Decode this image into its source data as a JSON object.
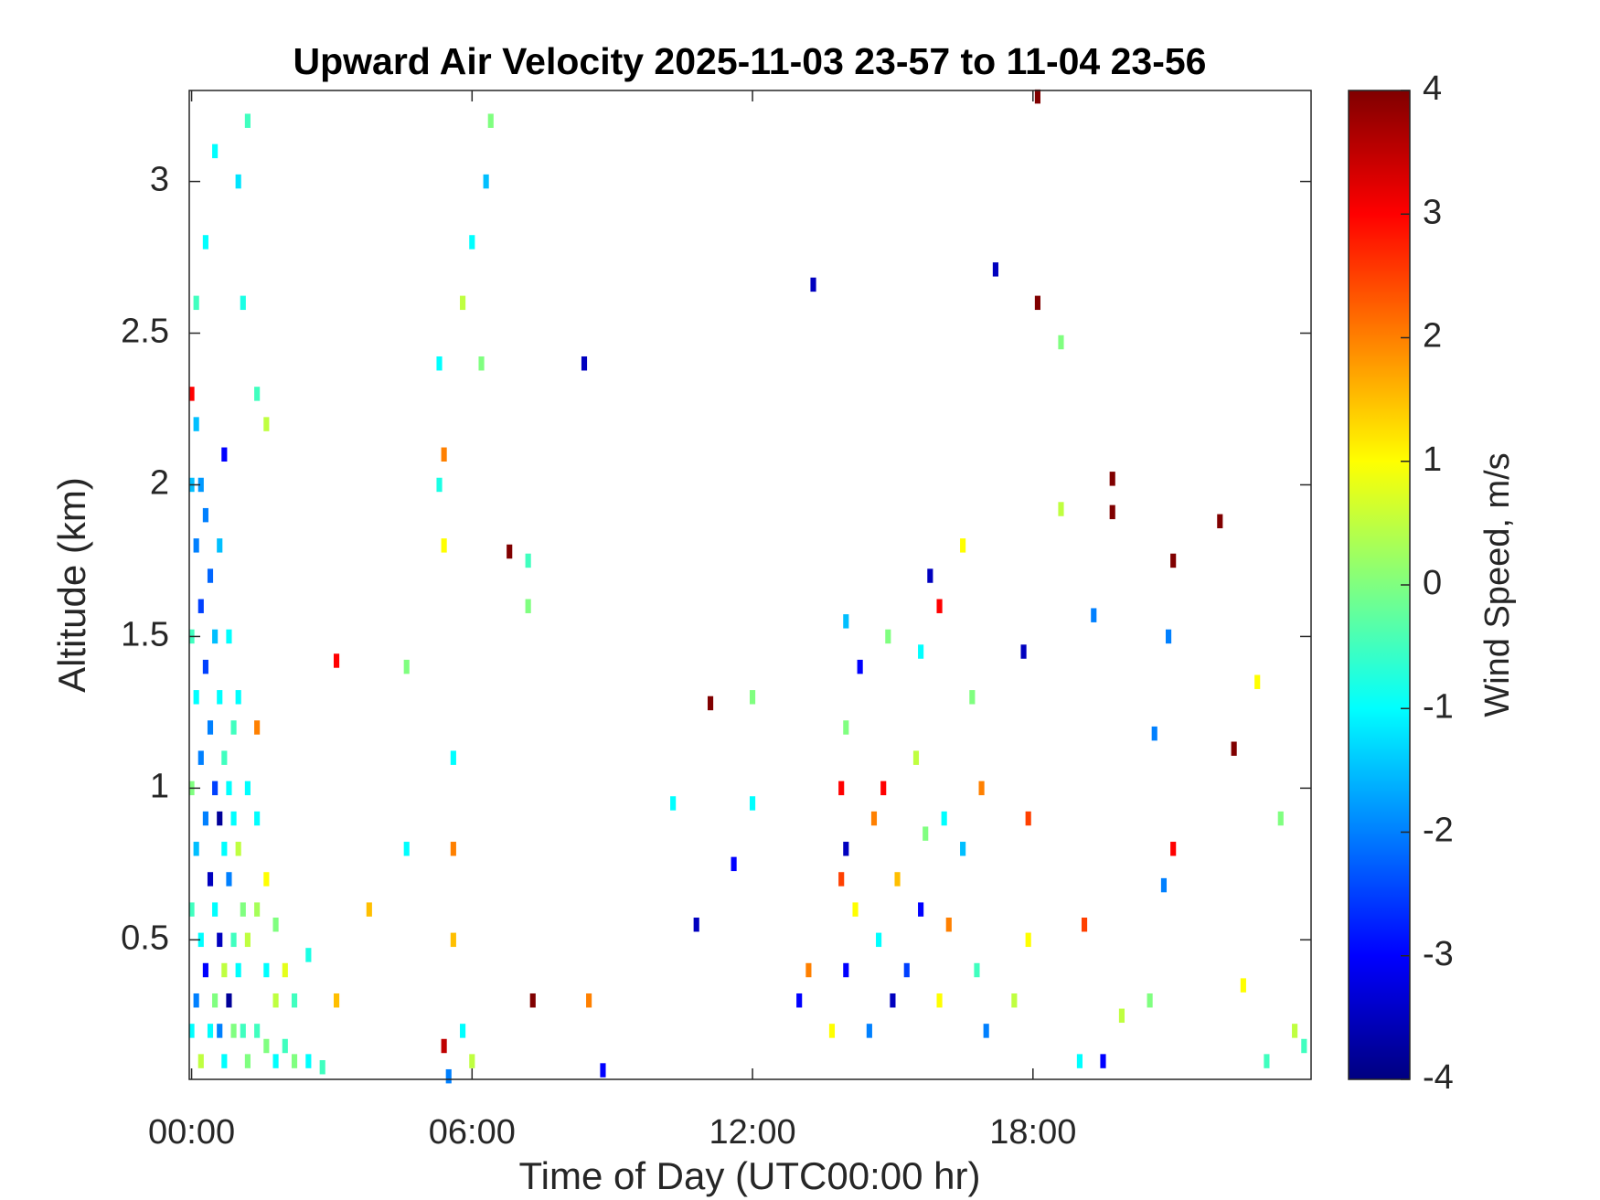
{
  "chart_data": {
    "type": "heatmap",
    "title": "Upward Air Velocity 2025-11-03 23-57 to 11-04 23-56",
    "x_label": "Time of Day (UTC00:00 hr)",
    "y_label": "Altitude (km)",
    "colorbar_label": "Wind Speed, m/s",
    "colormap": "jet",
    "clim": [
      -4,
      4
    ],
    "cticks": [
      -4,
      -3,
      -2,
      -1,
      0,
      1,
      2,
      3,
      4
    ],
    "xlim": [
      -0.05,
      23.95
    ],
    "xticks": [
      {
        "value": 0,
        "label": "00:00"
      },
      {
        "value": 6,
        "label": "06:00"
      },
      {
        "value": 12,
        "label": "12:00"
      },
      {
        "value": 18,
        "label": "18:00"
      }
    ],
    "ylim": [
      0.04,
      3.3
    ],
    "yticks": [
      0.5,
      1,
      1.5,
      2,
      2.5,
      3
    ],
    "x": [
      0.0,
      0.0,
      0.0,
      0.0,
      0.0,
      0.0,
      0.1,
      0.1,
      0.1,
      0.1,
      0.1,
      0.1,
      0.2,
      0.2,
      0.2,
      0.2,
      0.2,
      0.3,
      0.3,
      0.3,
      0.3,
      0.3,
      0.4,
      0.4,
      0.4,
      0.4,
      0.5,
      0.5,
      0.5,
      0.5,
      0.5,
      0.6,
      0.6,
      0.6,
      0.6,
      0.6,
      0.7,
      0.7,
      0.7,
      0.7,
      0.7,
      0.8,
      0.8,
      0.8,
      0.8,
      0.9,
      0.9,
      0.9,
      0.9,
      1.0,
      1.0,
      1.0,
      1.0,
      1.1,
      1.1,
      1.1,
      1.2,
      1.2,
      1.2,
      1.2,
      1.4,
      1.4,
      1.4,
      1.4,
      1.4,
      1.6,
      1.6,
      1.6,
      1.6,
      1.8,
      1.8,
      1.8,
      2.0,
      2.0,
      2.2,
      2.2,
      2.5,
      2.5,
      2.8,
      3.1,
      3.1,
      3.8,
      4.6,
      4.6,
      5.3,
      5.3,
      5.4,
      5.4,
      5.4,
      5.5,
      5.6,
      5.6,
      5.6,
      5.8,
      5.8,
      6.0,
      6.0,
      6.2,
      6.3,
      6.4,
      6.8,
      7.2,
      7.2,
      7.3,
      8.4,
      8.5,
      8.8,
      10.3,
      10.8,
      11.1,
      11.6,
      12.0,
      12.0,
      13.0,
      13.2,
      13.3,
      13.7,
      13.9,
      13.9,
      14.0,
      14.0,
      14.0,
      14.0,
      14.2,
      14.3,
      14.5,
      14.6,
      14.7,
      14.8,
      14.9,
      15.0,
      15.1,
      15.3,
      15.5,
      15.6,
      15.6,
      15.7,
      15.8,
      16.0,
      16.0,
      16.1,
      16.2,
      16.5,
      16.5,
      16.7,
      16.8,
      16.9,
      17.0,
      17.2,
      17.6,
      17.8,
      17.9,
      17.9,
      18.1,
      18.1,
      18.6,
      18.6,
      19.0,
      19.1,
      19.3,
      19.5,
      19.7,
      19.7,
      19.9,
      20.5,
      20.6,
      20.8,
      20.9,
      21.0,
      21.0,
      22.0,
      22.3,
      22.5,
      22.8,
      23.0,
      23.3,
      23.6,
      23.8
    ],
    "y": [
      0.2,
      0.6,
      1.0,
      1.5,
      2.0,
      2.3,
      0.3,
      0.8,
      1.3,
      1.8,
      2.2,
      2.6,
      0.1,
      0.5,
      1.1,
      1.6,
      2.0,
      0.4,
      0.9,
      1.4,
      1.9,
      2.8,
      0.2,
      0.7,
      1.2,
      1.7,
      0.3,
      0.6,
      1.0,
      1.5,
      3.1,
      0.2,
      0.5,
      0.9,
      1.3,
      1.8,
      0.1,
      0.4,
      0.8,
      1.1,
      2.1,
      0.3,
      0.7,
      1.0,
      1.5,
      0.2,
      0.5,
      0.9,
      1.2,
      0.4,
      0.8,
      1.3,
      3.0,
      0.2,
      0.6,
      2.6,
      0.1,
      0.5,
      1.0,
      3.2,
      0.2,
      0.6,
      0.9,
      1.2,
      2.3,
      0.15,
      0.4,
      0.7,
      2.2,
      0.1,
      0.3,
      0.55,
      0.15,
      0.4,
      0.1,
      0.3,
      0.1,
      0.45,
      0.08,
      0.3,
      1.42,
      0.6,
      1.4,
      0.8,
      2.4,
      2.0,
      2.1,
      1.8,
      0.15,
      0.05,
      0.8,
      0.5,
      1.1,
      2.6,
      0.2,
      2.8,
      0.1,
      2.4,
      3.0,
      3.2,
      1.78,
      1.6,
      1.75,
      0.3,
      2.4,
      0.3,
      0.07,
      0.95,
      0.55,
      1.28,
      0.75,
      0.95,
      1.3,
      0.3,
      0.4,
      2.66,
      0.2,
      1.0,
      0.7,
      1.55,
      1.2,
      0.4,
      0.8,
      0.6,
      1.4,
      0.2,
      0.9,
      0.5,
      1.0,
      1.5,
      0.3,
      0.7,
      0.4,
      1.1,
      0.6,
      1.45,
      0.85,
      1.7,
      1.6,
      0.3,
      0.9,
      0.55,
      1.8,
      0.8,
      1.3,
      0.4,
      1.0,
      0.2,
      2.71,
      0.3,
      1.45,
      0.9,
      0.5,
      2.6,
      3.28,
      2.47,
      1.92,
      0.1,
      0.55,
      1.57,
      0.1,
      2.02,
      1.91,
      0.25,
      0.3,
      1.18,
      0.68,
      1.5,
      1.75,
      0.8,
      1.88,
      1.13,
      0.35,
      1.35,
      0.1,
      0.9,
      0.2,
      0.15
    ],
    "values": [
      -1,
      -0.5,
      0,
      -0.5,
      -1.5,
      3,
      -2,
      -1.5,
      -1,
      -2,
      -1.5,
      -0.5,
      0.5,
      -1,
      -2,
      -2.5,
      -1.8,
      -3,
      -2,
      -2.5,
      -2,
      -1,
      -1,
      -3.5,
      -2,
      -2.2,
      0,
      -1,
      -2.5,
      -1.5,
      -1,
      -2,
      -3.5,
      -3.8,
      -1,
      -1.5,
      -1,
      0.5,
      -1,
      -0.5,
      -3,
      -3.8,
      -2,
      -1,
      -1,
      0,
      -0.5,
      -1,
      -0.5,
      -1,
      0.5,
      -1,
      -1.2,
      -0.5,
      0,
      -0.8,
      0,
      0.5,
      -1,
      -0.5,
      -0.5,
      0.3,
      -1,
      2,
      -0.5,
      0,
      -1,
      1,
      0.5,
      -1,
      0.5,
      0,
      -0.5,
      0.8,
      0,
      -0.5,
      -1,
      -0.8,
      -0.5,
      1.5,
      3,
      1.5,
      0,
      -1,
      -1,
      -0.8,
      2,
      1,
      3.5,
      -2,
      2,
      1.5,
      -1,
      0.5,
      -1,
      -1,
      0.5,
      0,
      -1.5,
      0,
      4,
      0,
      -0.5,
      4,
      -3.5,
      2,
      -3,
      -1,
      -3.5,
      4,
      -3,
      -1,
      0,
      -3,
      2,
      -3.5,
      1,
      3,
      2.5,
      -1.5,
      0,
      -3,
      -3.5,
      1,
      -3,
      -2,
      2,
      -1,
      3,
      0,
      -3.5,
      1.5,
      -2.5,
      0.5,
      -3,
      -1,
      0,
      -3.5,
      3,
      1,
      -1,
      2,
      1,
      -1.5,
      0,
      -0.5,
      2,
      -2,
      -3.5,
      0.5,
      -3.5,
      2.5,
      1,
      4,
      4,
      0,
      0.5,
      -1,
      2.5,
      -2,
      -3,
      4,
      4,
      0.5,
      0,
      -2,
      -2,
      -2,
      4,
      3,
      4,
      4,
      1,
      1,
      -0.5,
      0,
      0.5,
      -0.5
    ]
  }
}
